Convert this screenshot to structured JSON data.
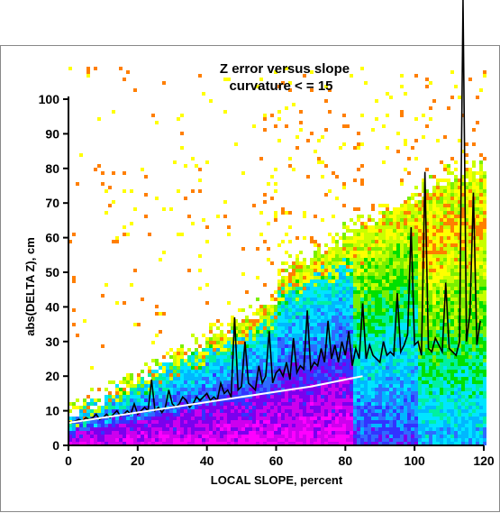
{
  "chart_data": {
    "type": "heatmap",
    "title_line1": "Z error versus slope",
    "title_line2": "curvature < = 15",
    "xlabel": "LOCAL SLOPE, percent",
    "ylabel": "abs(DELTA Z), cm",
    "xlim": [
      0,
      120
    ],
    "ylim": [
      0,
      100
    ],
    "x_ticks": [
      0,
      20,
      40,
      60,
      80,
      100,
      120
    ],
    "y_ticks": [
      0,
      10,
      20,
      30,
      40,
      50,
      60,
      70,
      80,
      90,
      100
    ],
    "density_colors": [
      "#ff00ff",
      "#cc00ee",
      "#7a00ee",
      "#3333ff",
      "#2f6bff",
      "#00b7ff",
      "#00e5ff",
      "#00f0a0",
      "#00e000",
      "#7af000",
      "#c8ff00",
      "#ffff00",
      "#ff7f00"
    ],
    "series": [
      {
        "type": "line",
        "color": "#000000",
        "x": [
          0,
          1,
          2,
          3,
          4,
          5,
          6,
          7,
          8,
          9,
          10,
          11,
          12,
          13,
          14,
          15,
          16,
          17,
          18,
          19,
          20,
          21,
          22,
          23,
          24,
          25,
          26,
          27,
          28,
          29,
          30,
          31,
          32,
          33,
          34,
          35,
          36,
          37,
          38,
          39,
          40,
          41,
          42,
          43,
          44,
          45,
          46,
          47,
          48,
          49,
          50,
          51,
          52,
          53,
          54,
          55,
          56,
          57,
          58,
          59,
          60,
          61,
          62,
          63,
          64,
          65,
          66,
          67,
          68,
          69,
          70,
          71,
          72,
          73,
          74,
          75,
          76,
          77,
          78,
          79,
          80,
          81,
          82,
          83,
          84,
          85,
          86,
          87,
          88,
          89,
          90,
          91,
          92,
          93,
          94,
          95,
          96,
          97,
          98,
          99,
          100,
          101,
          102,
          103,
          104,
          105,
          106,
          107,
          108,
          109,
          110,
          111,
          112,
          113,
          114,
          115,
          116,
          117,
          118,
          119
        ],
        "y": [
          7,
          6.5,
          7,
          7.5,
          7,
          8,
          7.5,
          8,
          9,
          7.5,
          8,
          9,
          8,
          9,
          10,
          8.5,
          9,
          10,
          9,
          12,
          9,
          10,
          11,
          10,
          19,
          10,
          11,
          9.5,
          11,
          16,
          12,
          11,
          12,
          14,
          13,
          11,
          12,
          14,
          13,
          14,
          15,
          13,
          14,
          13,
          18,
          15,
          16,
          14,
          37,
          16,
          17,
          30,
          18,
          17,
          16,
          23,
          18,
          20,
          33,
          18,
          21,
          22,
          20,
          24,
          19,
          31,
          21,
          23,
          22,
          39,
          22,
          24,
          23,
          28,
          24,
          36,
          25,
          29,
          24,
          30,
          26,
          33,
          23,
          28,
          25,
          41,
          25,
          29,
          26,
          25,
          24,
          30,
          26,
          27,
          26,
          44,
          27,
          29,
          32,
          63,
          29,
          30,
          26,
          79,
          28,
          27,
          31,
          29,
          27,
          47,
          28,
          27,
          26,
          30,
          130,
          30,
          38,
          73,
          29,
          36
        ]
      },
      {
        "type": "line",
        "color": "#ffffff",
        "x": [
          0,
          10,
          20,
          30,
          40,
          50,
          60,
          70,
          80,
          85
        ],
        "y": [
          6.5,
          8,
          9.5,
          11,
          12.5,
          14,
          15.5,
          17,
          19,
          20
        ]
      }
    ]
  }
}
